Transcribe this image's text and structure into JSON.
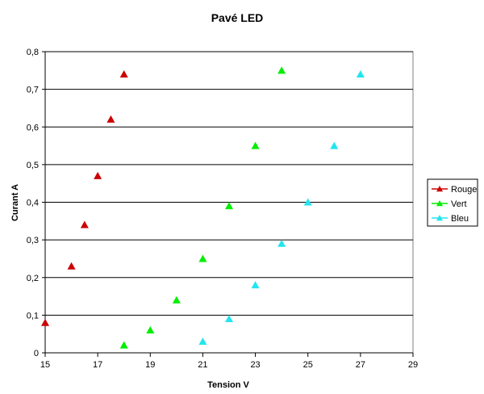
{
  "chart_data": {
    "type": "scatter",
    "title": "Pavé LED",
    "xlabel": "Tension  V",
    "ylabel": "Curant A",
    "xlim": [
      15,
      29
    ],
    "ylim": [
      0,
      0.8
    ],
    "x_ticks": [
      15,
      17,
      19,
      21,
      23,
      25,
      27,
      29
    ],
    "x_tick_labels": [
      "15",
      "17",
      "19",
      "21",
      "23",
      "25",
      "27",
      "29"
    ],
    "y_ticks": [
      0,
      0.1,
      0.2,
      0.3,
      0.4,
      0.5,
      0.6,
      0.7,
      0.8
    ],
    "y_tick_labels": [
      "0",
      "0,1",
      "0,2",
      "0,3",
      "0,4",
      "0,5",
      "0,6",
      "0,7",
      "0,8"
    ],
    "grid": "horizontal",
    "legend_position": "right",
    "marker": "triangle",
    "series": [
      {
        "name": "Rouge",
        "color": "#cc0000",
        "points": [
          [
            15,
            0.08
          ],
          [
            16,
            0.23
          ],
          [
            16.5,
            0.34
          ],
          [
            17,
            0.47
          ],
          [
            17.5,
            0.62
          ],
          [
            18,
            0.74
          ]
        ]
      },
      {
        "name": "Vert",
        "color": "#00ee00",
        "points": [
          [
            18,
            0.02
          ],
          [
            19,
            0.06
          ],
          [
            20,
            0.14
          ],
          [
            21,
            0.25
          ],
          [
            22,
            0.39
          ],
          [
            23,
            0.55
          ],
          [
            24,
            0.75
          ]
        ]
      },
      {
        "name": "Bleu",
        "color": "#22e5ee",
        "points": [
          [
            21,
            0.03
          ],
          [
            22,
            0.09
          ],
          [
            23,
            0.18
          ],
          [
            24,
            0.29
          ],
          [
            25,
            0.4
          ],
          [
            26,
            0.55
          ],
          [
            27,
            0.74
          ]
        ]
      }
    ]
  }
}
